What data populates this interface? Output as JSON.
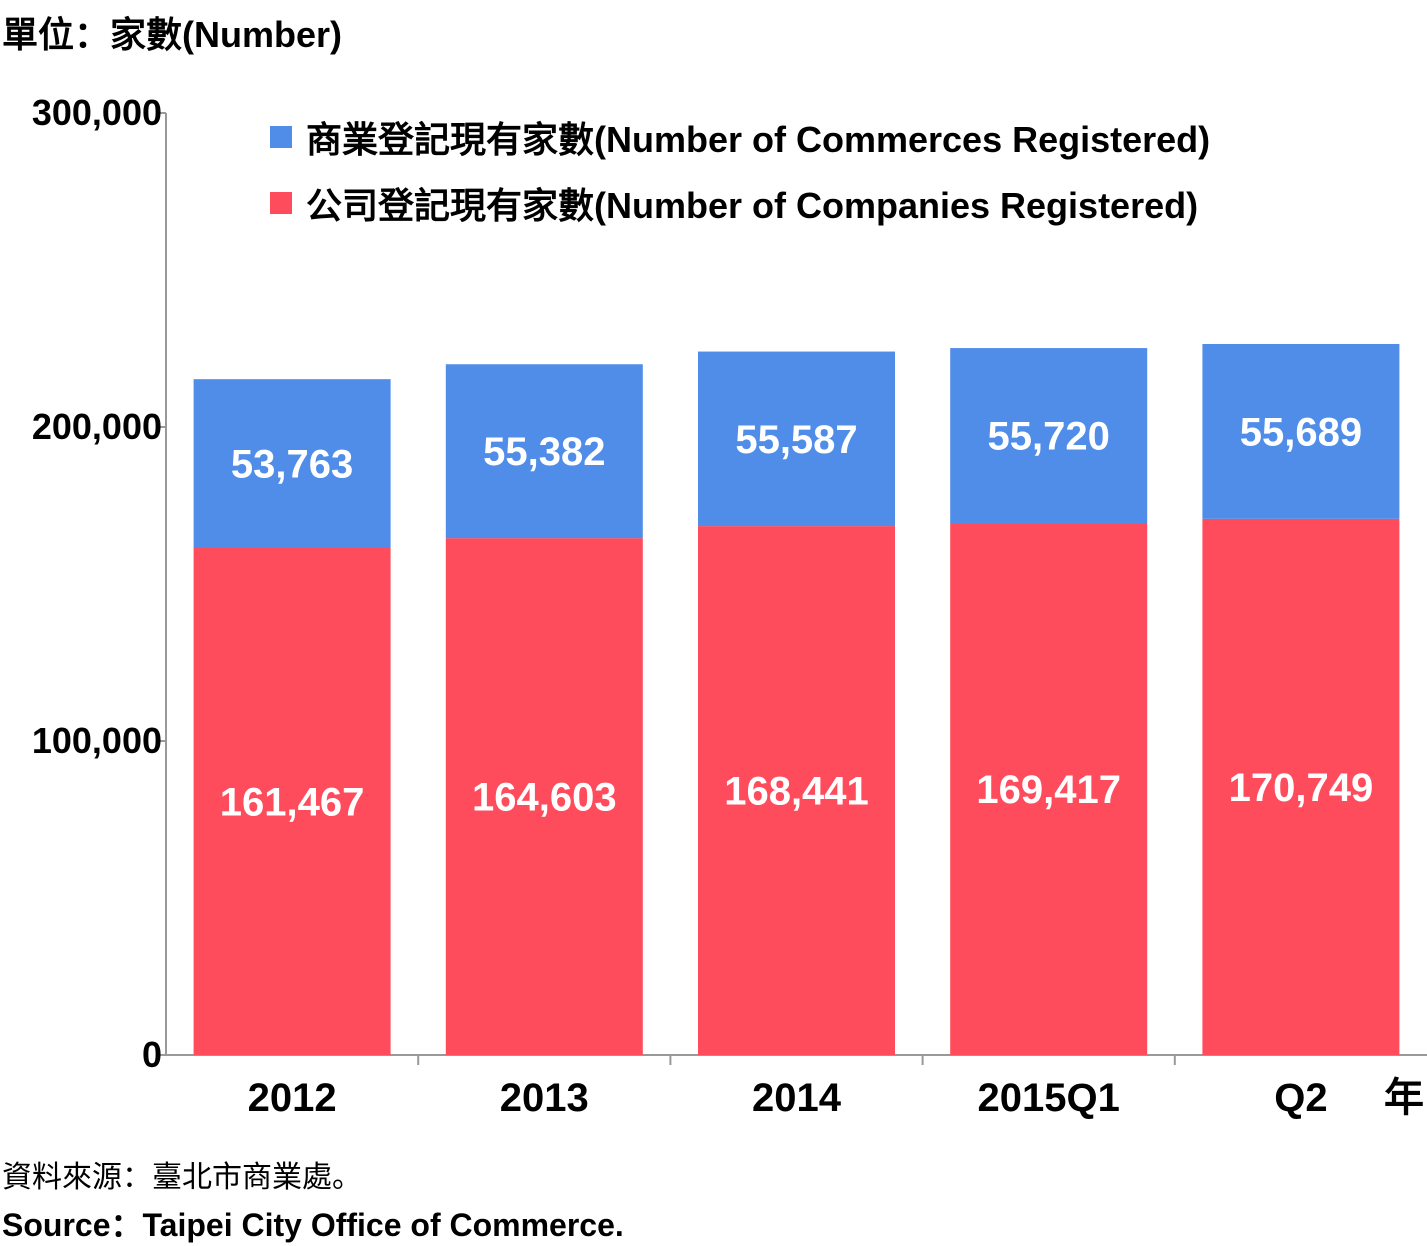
{
  "unit_label": "單位：家數(Number)",
  "source_zh": "資料來源：臺北市商業處。",
  "source_en": "Source：Taipei City Office of Commerce.",
  "x_unit": "年",
  "colors": {
    "companies": "#FF4C5C",
    "commerces": "#4F8DE8",
    "axis": "#999999"
  },
  "chart_data": {
    "type": "bar",
    "stacked": true,
    "categories": [
      "2012",
      "2013",
      "2014",
      "2015Q1",
      "Q2"
    ],
    "series": [
      {
        "name": "公司登記現有家數(Number of Companies Registered)",
        "values": [
          161467,
          164603,
          168441,
          169417,
          170749
        ]
      },
      {
        "name": "商業登記現有家數(Number of Commerces Registered)",
        "values": [
          53763,
          55382,
          55587,
          55720,
          55689
        ]
      }
    ],
    "value_labels": [
      [
        "161,467",
        "164,603",
        "168,441",
        "169,417",
        "170,749"
      ],
      [
        "53,763",
        "55,382",
        "55,587",
        "55,720",
        "55,689"
      ]
    ],
    "ylim": [
      0,
      300000
    ],
    "yticks": [
      0,
      100000,
      200000,
      300000
    ],
    "ytick_labels": [
      "0",
      "100,000",
      "200,000",
      "300,000"
    ],
    "legend_position": "top",
    "grid": false
  }
}
